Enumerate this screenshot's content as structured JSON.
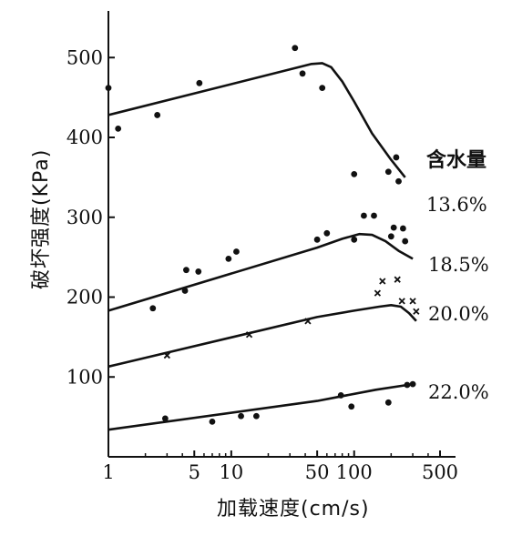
{
  "chart_data": {
    "type": "line",
    "title": "",
    "xlabel": "加载速度(cm/s)",
    "ylabel": "破坏强度(KPa)",
    "xscale": "log",
    "xlim": [
      1,
      500
    ],
    "ylim": [
      0,
      550
    ],
    "xticks": [
      {
        "value": 1,
        "label": "1"
      },
      {
        "value": 5,
        "label": "5"
      },
      {
        "value": 10,
        "label": "10"
      },
      {
        "value": 50,
        "label": "50"
      },
      {
        "value": 100,
        "label": "100"
      },
      {
        "value": 500,
        "label": "500"
      }
    ],
    "yticks": [
      {
        "value": 100,
        "label": "100"
      },
      {
        "value": 200,
        "label": "200"
      },
      {
        "value": 300,
        "label": "300"
      },
      {
        "value": 400,
        "label": "400"
      },
      {
        "value": 500,
        "label": "500"
      }
    ],
    "legend_title": "含水量",
    "grid": false,
    "series": [
      {
        "name": "13.6%",
        "marker": "dot",
        "curve": [
          [
            1,
            428
          ],
          [
            45,
            492
          ],
          [
            55,
            493
          ],
          [
            65,
            488
          ],
          [
            80,
            470
          ],
          [
            100,
            445
          ],
          [
            140,
            405
          ],
          [
            200,
            372
          ],
          [
            260,
            350
          ]
        ],
        "points": [
          [
            1,
            462
          ],
          [
            1.2,
            411
          ],
          [
            2.5,
            428
          ],
          [
            5.5,
            468
          ],
          [
            33,
            512
          ],
          [
            38,
            480
          ],
          [
            55,
            462
          ],
          [
            100,
            354
          ],
          [
            190,
            357
          ],
          [
            220,
            375
          ],
          [
            230,
            345
          ]
        ]
      },
      {
        "name": "18.5%",
        "marker": "dot",
        "curve": [
          [
            1,
            183
          ],
          [
            50,
            262
          ],
          [
            80,
            273
          ],
          [
            110,
            279
          ],
          [
            140,
            278
          ],
          [
            180,
            270
          ],
          [
            230,
            258
          ],
          [
            300,
            248
          ]
        ],
        "points": [
          [
            2.3,
            186
          ],
          [
            4.2,
            208
          ],
          [
            4.3,
            234
          ],
          [
            5.4,
            232
          ],
          [
            9.5,
            248
          ],
          [
            11,
            257
          ],
          [
            50,
            272
          ],
          [
            60,
            280
          ],
          [
            100,
            272
          ],
          [
            120,
            302
          ],
          [
            145,
            302
          ],
          [
            200,
            276
          ],
          [
            210,
            287
          ],
          [
            250,
            286
          ],
          [
            260,
            270
          ]
        ]
      },
      {
        "name": "20.0%",
        "marker": "x",
        "curve": [
          [
            1,
            113
          ],
          [
            50,
            175
          ],
          [
            100,
            183
          ],
          [
            160,
            188
          ],
          [
            200,
            190
          ],
          [
            240,
            188
          ],
          [
            280,
            180
          ],
          [
            320,
            170
          ]
        ],
        "points": [
          [
            3,
            127
          ],
          [
            14,
            153
          ],
          [
            42,
            170
          ],
          [
            155,
            205
          ],
          [
            170,
            220
          ],
          [
            225,
            222
          ],
          [
            245,
            195
          ],
          [
            300,
            195
          ],
          [
            320,
            182
          ]
        ]
      },
      {
        "name": "22.0%",
        "marker": "dot",
        "curve": [
          [
            1,
            34
          ],
          [
            50,
            70
          ],
          [
            150,
            84
          ],
          [
            300,
            91
          ]
        ],
        "points": [
          [
            2.9,
            48
          ],
          [
            7,
            44
          ],
          [
            12,
            51
          ],
          [
            16,
            51
          ],
          [
            78,
            77
          ],
          [
            95,
            63
          ],
          [
            190,
            68
          ],
          [
            270,
            90
          ],
          [
            300,
            91
          ]
        ]
      }
    ]
  }
}
